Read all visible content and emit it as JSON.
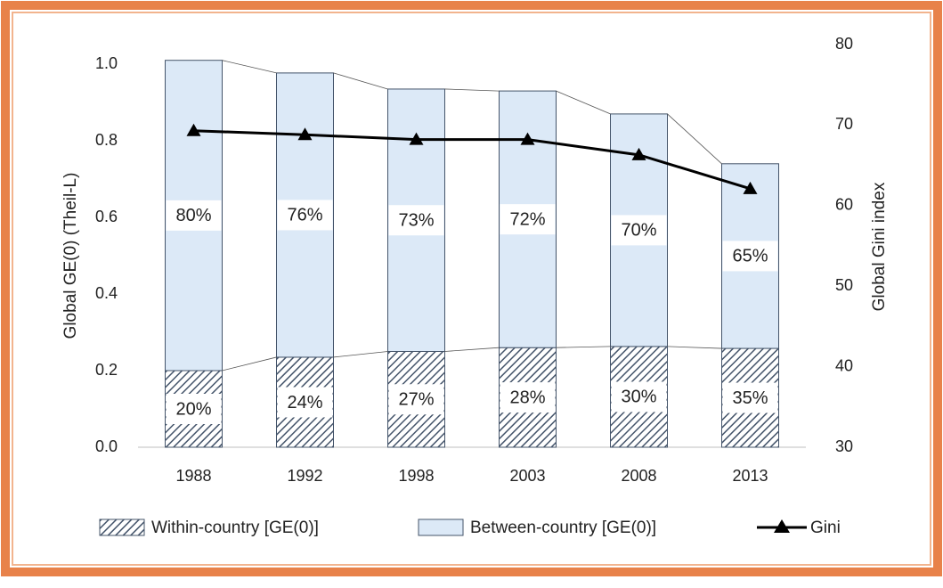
{
  "chart_data": {
    "type": "stacked-bar-line",
    "y_label": "Global GE(0) (Theil-L)",
    "y2_label": "Global Gini index",
    "categories": [
      "1988",
      "1992",
      "1998",
      "2003",
      "2008",
      "2013"
    ],
    "series": [
      {
        "name": "Within-country [GE(0)]",
        "kind": "bar",
        "color": "#44546a",
        "pattern": "hatch",
        "values": [
          0.2,
          0.235,
          0.25,
          0.26,
          0.263,
          0.258
        ],
        "share_labels": [
          "20%",
          "24%",
          "27%",
          "28%",
          "30%",
          "35%"
        ]
      },
      {
        "name": "Between-country [GE(0)]",
        "kind": "bar",
        "color": "#dce9f7",
        "values": [
          0.81,
          0.742,
          0.685,
          0.67,
          0.607,
          0.482
        ],
        "share_labels": [
          "80%",
          "76%",
          "73%",
          "72%",
          "70%",
          "65%"
        ]
      },
      {
        "name": "Gini",
        "kind": "line",
        "axis": "y2",
        "color": "#000000",
        "marker": "triangle",
        "values": [
          69.3,
          68.8,
          68.2,
          68.2,
          66.3,
          62.1
        ]
      }
    ],
    "ylim": [
      0,
      1.0
    ],
    "yticks": [
      {
        "value": 0,
        "label": "0.0"
      },
      {
        "value": 0.2,
        "label": "0.2"
      },
      {
        "value": 0.4,
        "label": "0.4"
      },
      {
        "value": 0.6,
        "label": "0.6"
      },
      {
        "value": 0.8,
        "label": "0.8"
      },
      {
        "value": 1.0,
        "label": "1.0"
      }
    ],
    "y2lim": [
      30,
      80
    ],
    "y2ticks": [
      30,
      40,
      50,
      60,
      70,
      80
    ],
    "legend": "bottom"
  }
}
